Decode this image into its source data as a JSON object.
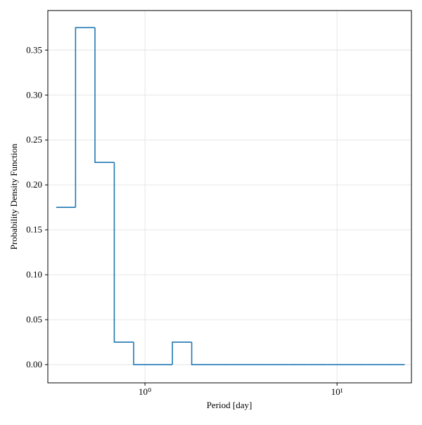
{
  "chart_data": {
    "type": "histogram",
    "xlabel": "Period [day]",
    "ylabel": "Probability Density Function",
    "bins": [
      0.345,
      0.435,
      0.549,
      0.692,
      0.873,
      1.101,
      1.389,
      1.751,
      2.209,
      2.786,
      3.514,
      4.432,
      5.589,
      7.049,
      8.891,
      11.21,
      14.14,
      17.84,
      22.5
    ],
    "values": [
      0.175,
      0.375,
      0.225,
      0.025,
      0,
      0,
      0.025,
      0,
      0,
      0,
      0,
      0,
      0,
      0,
      0,
      0,
      0,
      0
    ],
    "color": "#1f77b4",
    "xscale": "log",
    "xlim": [
      0.312,
      24.4
    ],
    "xticks": [
      {
        "value": 1,
        "label": "10⁰"
      },
      {
        "value": 10,
        "label": "10¹"
      }
    ],
    "ylim": [
      -0.0203,
      0.394
    ],
    "yticks": [
      {
        "value": 0,
        "label": "0.00"
      },
      {
        "value": 0.05,
        "label": "0.05"
      },
      {
        "value": 0.1,
        "label": "0.10"
      },
      {
        "value": 0.15,
        "label": "0.15"
      },
      {
        "value": 0.2,
        "label": "0.20"
      },
      {
        "value": 0.25,
        "label": "0.25"
      },
      {
        "value": 0.3,
        "label": "0.30"
      },
      {
        "value": 0.35,
        "label": "0.35"
      }
    ],
    "grid": true
  }
}
